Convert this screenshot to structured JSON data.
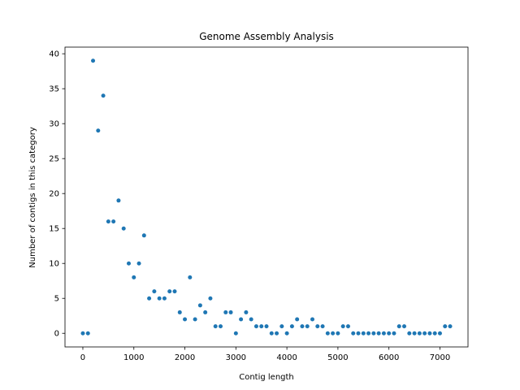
{
  "chart_data": {
    "type": "scatter",
    "title": "Genome Assembly Analysis",
    "xlabel": "Contig length",
    "ylabel": "Number of contigs in this category",
    "xlim": [
      -350,
      7550
    ],
    "ylim": [
      -1.95,
      40.95
    ],
    "xticks": [
      0,
      1000,
      2000,
      3000,
      4000,
      5000,
      6000,
      7000
    ],
    "yticks": [
      0,
      5,
      10,
      15,
      20,
      25,
      30,
      35,
      40
    ],
    "marker_color": "#1f77b4",
    "grid": false,
    "points": [
      [
        0,
        0
      ],
      [
        100,
        0
      ],
      [
        200,
        39
      ],
      [
        300,
        29
      ],
      [
        400,
        34
      ],
      [
        500,
        16
      ],
      [
        600,
        16
      ],
      [
        700,
        19
      ],
      [
        800,
        15
      ],
      [
        900,
        10
      ],
      [
        1000,
        8
      ],
      [
        1100,
        10
      ],
      [
        1200,
        14
      ],
      [
        1300,
        5
      ],
      [
        1400,
        6
      ],
      [
        1500,
        5
      ],
      [
        1600,
        5
      ],
      [
        1700,
        6
      ],
      [
        1800,
        6
      ],
      [
        1900,
        3
      ],
      [
        2000,
        2
      ],
      [
        2100,
        8
      ],
      [
        2200,
        2
      ],
      [
        2300,
        4
      ],
      [
        2400,
        3
      ],
      [
        2500,
        5
      ],
      [
        2600,
        1
      ],
      [
        2700,
        1
      ],
      [
        2800,
        3
      ],
      [
        2900,
        3
      ],
      [
        3000,
        0
      ],
      [
        3100,
        2
      ],
      [
        3200,
        3
      ],
      [
        3300,
        2
      ],
      [
        3400,
        1
      ],
      [
        3500,
        1
      ],
      [
        3600,
        1
      ],
      [
        3700,
        0
      ],
      [
        3800,
        0
      ],
      [
        3900,
        1
      ],
      [
        4000,
        0
      ],
      [
        4100,
        1
      ],
      [
        4200,
        2
      ],
      [
        4300,
        1
      ],
      [
        4400,
        1
      ],
      [
        4500,
        2
      ],
      [
        4600,
        1
      ],
      [
        4700,
        1
      ],
      [
        4800,
        0
      ],
      [
        4900,
        0
      ],
      [
        5000,
        0
      ],
      [
        5100,
        1
      ],
      [
        5200,
        1
      ],
      [
        5300,
        0
      ],
      [
        5400,
        0
      ],
      [
        5500,
        0
      ],
      [
        5600,
        0
      ],
      [
        5700,
        0
      ],
      [
        5800,
        0
      ],
      [
        5900,
        0
      ],
      [
        6000,
        0
      ],
      [
        6100,
        0
      ],
      [
        6200,
        1
      ],
      [
        6300,
        1
      ],
      [
        6400,
        0
      ],
      [
        6500,
        0
      ],
      [
        6600,
        0
      ],
      [
        6700,
        0
      ],
      [
        6800,
        0
      ],
      [
        6900,
        0
      ],
      [
        7000,
        0
      ],
      [
        7100,
        1
      ],
      [
        7200,
        1
      ]
    ]
  }
}
